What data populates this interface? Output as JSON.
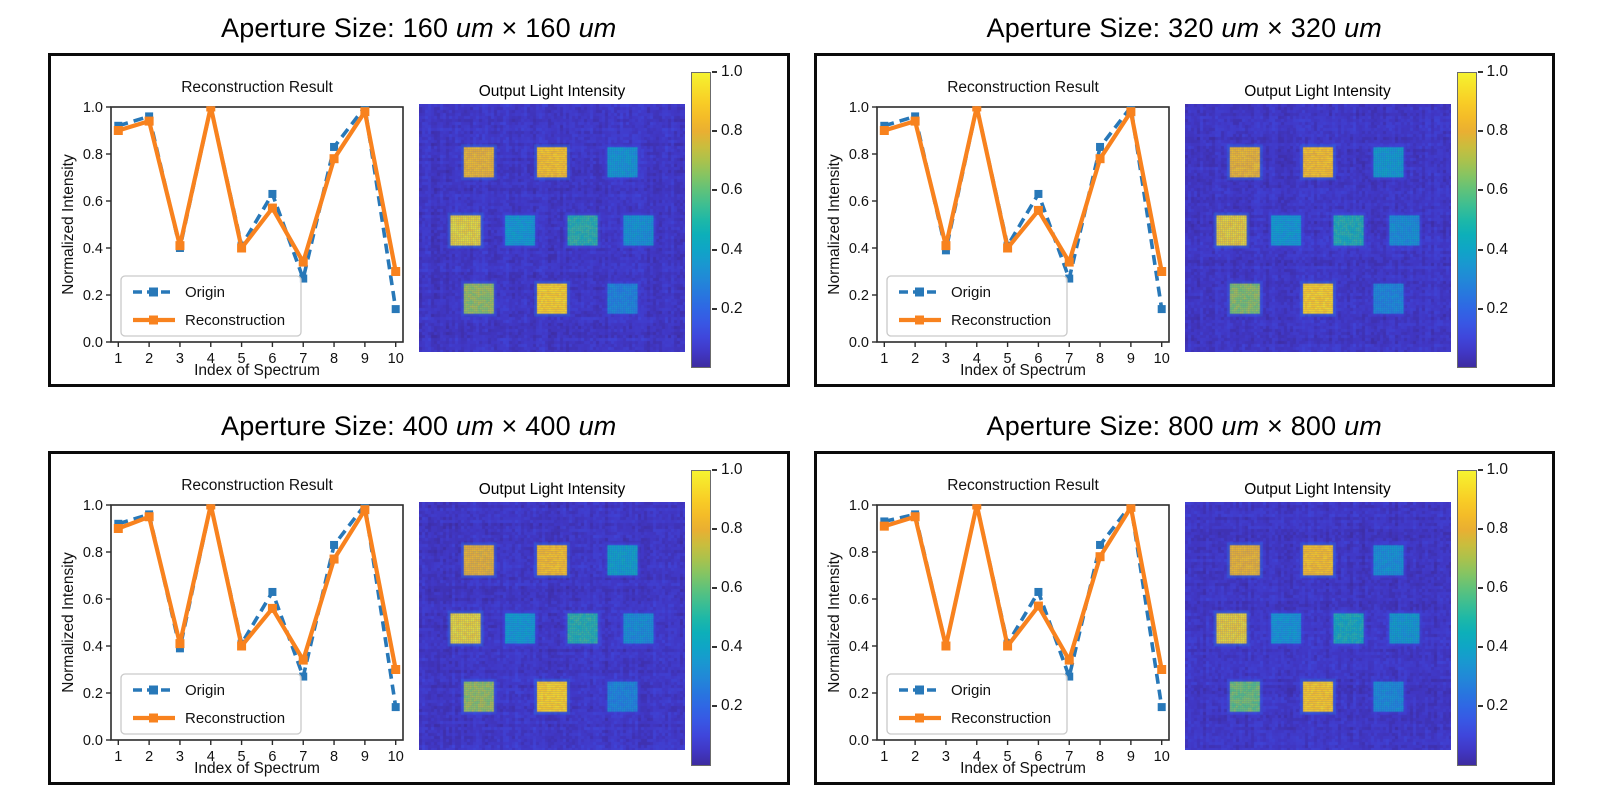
{
  "chart_data": {
    "type": "line",
    "chart_title": "Reconstruction Result",
    "heatmap_title": "Output Light Intensity",
    "xlabel": "Index of Spectrum",
    "ylabel": "Normalized Intensity",
    "x": [
      1,
      2,
      3,
      4,
      5,
      6,
      7,
      8,
      9,
      10
    ],
    "x_ticks": [
      "1",
      "2",
      "3",
      "4",
      "5",
      "6",
      "7",
      "8",
      "9",
      "10"
    ],
    "y_ticks": [
      "0.0",
      "0.2",
      "0.4",
      "0.6",
      "0.8",
      "1.0"
    ],
    "ylim": [
      0.0,
      1.0
    ],
    "grid": false,
    "legend_position": "lower left",
    "legend": [
      "Origin",
      "Reconstruction"
    ],
    "series_colors": {
      "Origin": "#2878b8",
      "Reconstruction": "#f8821e"
    },
    "colorbar": {
      "colormap": "parula",
      "range": [
        0.0,
        1.0
      ],
      "tick_values": [
        1.0,
        0.8,
        0.6,
        0.4,
        0.2
      ],
      "tick_labels": [
        "1.0",
        "0.8",
        "0.6",
        "0.4",
        "0.2"
      ]
    },
    "panels": [
      {
        "title": "Aperture Size: 160 um × 160 um",
        "series": [
          {
            "name": "Origin",
            "style": "dashed",
            "values": [
              0.92,
              0.96,
              0.4,
              1.0,
              0.41,
              0.63,
              0.27,
              0.83,
              1.0,
              0.14
            ]
          },
          {
            "name": "Reconstruction",
            "style": "solid",
            "values": [
              0.9,
              0.94,
              0.41,
              1.0,
              0.4,
              0.57,
              0.34,
              0.78,
              0.98,
              0.3
            ]
          }
        ],
        "heatmap_rows": [
          [
            0.84,
            0.86,
            0.38
          ],
          [
            0.95,
            0.38,
            0.52,
            0.38
          ],
          [
            0.68,
            0.9,
            0.32
          ]
        ]
      },
      {
        "title": "Aperture Size: 320 um × 320 um",
        "series": [
          {
            "name": "Origin",
            "style": "dashed",
            "values": [
              0.92,
              0.96,
              0.39,
              1.0,
              0.41,
              0.63,
              0.27,
              0.83,
              1.0,
              0.14
            ]
          },
          {
            "name": "Reconstruction",
            "style": "solid",
            "values": [
              0.9,
              0.94,
              0.41,
              1.0,
              0.4,
              0.56,
              0.34,
              0.78,
              0.98,
              0.3
            ]
          }
        ],
        "heatmap_rows": [
          [
            0.84,
            0.85,
            0.4
          ],
          [
            0.93,
            0.38,
            0.5,
            0.36
          ],
          [
            0.66,
            0.9,
            0.33
          ]
        ]
      },
      {
        "title": "Aperture Size: 400 um × 400 um",
        "series": [
          {
            "name": "Origin",
            "style": "dashed",
            "values": [
              0.92,
              0.96,
              0.39,
              1.0,
              0.41,
              0.63,
              0.27,
              0.83,
              1.0,
              0.14
            ]
          },
          {
            "name": "Reconstruction",
            "style": "solid",
            "values": [
              0.9,
              0.95,
              0.41,
              1.0,
              0.4,
              0.56,
              0.34,
              0.77,
              0.98,
              0.3
            ]
          }
        ],
        "heatmap_rows": [
          [
            0.82,
            0.85,
            0.42
          ],
          [
            0.95,
            0.38,
            0.52,
            0.36
          ],
          [
            0.68,
            0.9,
            0.32
          ]
        ]
      },
      {
        "title": "Aperture Size: 800 um × 800 um",
        "series": [
          {
            "name": "Origin",
            "style": "dashed",
            "values": [
              0.93,
              0.96,
              0.4,
              1.0,
              0.41,
              0.63,
              0.27,
              0.83,
              1.0,
              0.14
            ]
          },
          {
            "name": "Reconstruction",
            "style": "solid",
            "values": [
              0.91,
              0.95,
              0.4,
              1.0,
              0.4,
              0.57,
              0.34,
              0.78,
              0.99,
              0.3
            ]
          }
        ],
        "heatmap_rows": [
          [
            0.83,
            0.85,
            0.36
          ],
          [
            0.93,
            0.36,
            0.48,
            0.4
          ],
          [
            0.62,
            0.88,
            0.34
          ]
        ]
      }
    ]
  }
}
